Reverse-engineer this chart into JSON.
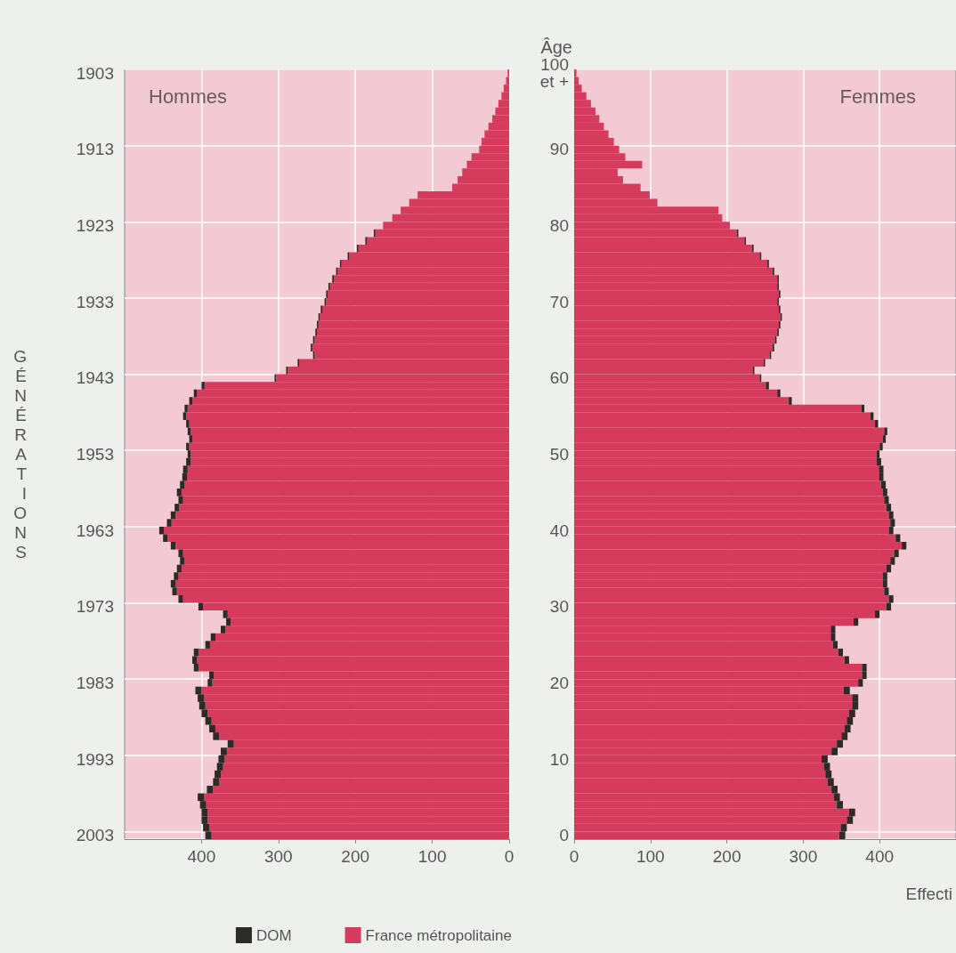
{
  "chart_data": [
    {
      "type": "bar",
      "orientation": "horizontal",
      "stacked": true,
      "title": "Hommes",
      "ylabel": "GÉNÉRATIONS",
      "categories": [
        "1903",
        null,
        null,
        null,
        null,
        null,
        null,
        null,
        null,
        null,
        "1913",
        null,
        null,
        null,
        null,
        null,
        null,
        null,
        null,
        null,
        "1923",
        null,
        null,
        null,
        null,
        null,
        null,
        null,
        null,
        null,
        "1933",
        null,
        null,
        null,
        null,
        null,
        null,
        null,
        null,
        null,
        "1943",
        null,
        null,
        null,
        null,
        null,
        null,
        null,
        null,
        null,
        "1953",
        null,
        null,
        null,
        null,
        null,
        null,
        null,
        null,
        null,
        "1963",
        null,
        null,
        null,
        null,
        null,
        null,
        null,
        null,
        null,
        "1973",
        null,
        null,
        null,
        null,
        null,
        null,
        null,
        null,
        null,
        "1983",
        null,
        null,
        null,
        null,
        null,
        null,
        null,
        null,
        null,
        "1993",
        null,
        null,
        null,
        null,
        null,
        null,
        null,
        null,
        null,
        "2003"
      ],
      "series": [
        {
          "name": "France métropolitaine",
          "color": "#d63a5c",
          "values": [
            2,
            4,
            7,
            10,
            14,
            18,
            22,
            27,
            32,
            36,
            39,
            49,
            55,
            61,
            67,
            74,
            119,
            130,
            141,
            152,
            164,
            174,
            185,
            196,
            208,
            218,
            223,
            228,
            233,
            236,
            238,
            243,
            246,
            248,
            250,
            253,
            256,
            253,
            273,
            288,
            303,
            396,
            406,
            412,
            418,
            420,
            416,
            414,
            412,
            416,
            414,
            414,
            418,
            419,
            422,
            426,
            424,
            429,
            434,
            439,
            449,
            444,
            434,
            424,
            422,
            426,
            430,
            434,
            432,
            424,
            398,
            366,
            362,
            369,
            382,
            389,
            404,
            406,
            404,
            384,
            386,
            400,
            397,
            395,
            392,
            387,
            382,
            377,
            358,
            367,
            370,
            372,
            375,
            377,
            385,
            397,
            394,
            392,
            392,
            390,
            387
          ]
        },
        {
          "name": "DOM",
          "color": "#2e2a28",
          "values": [
            null,
            null,
            null,
            null,
            null,
            null,
            null,
            null,
            null,
            null,
            null,
            null,
            null,
            null,
            null,
            null,
            null,
            null,
            null,
            null,
            null,
            2,
            2,
            2,
            2,
            2,
            2,
            2,
            2,
            2,
            2,
            2,
            2,
            2,
            2,
            2,
            2,
            2,
            2,
            2,
            2,
            4,
            4,
            4,
            4,
            4,
            4,
            4,
            4,
            4,
            4,
            6,
            6,
            6,
            6,
            6,
            6,
            6,
            6,
            6,
            6,
            6,
            6,
            6,
            6,
            6,
            6,
            6,
            6,
            6,
            6,
            6,
            6,
            6,
            6,
            6,
            6,
            6,
            6,
            6,
            6,
            8,
            8,
            8,
            8,
            8,
            8,
            8,
            8,
            8,
            8,
            8,
            8,
            8,
            8,
            8,
            8,
            8,
            8,
            8,
            8
          ]
        }
      ],
      "xlim": [
        500,
        0
      ],
      "xticks": [
        400,
        300,
        200,
        100,
        0
      ],
      "grid": true,
      "legend": "bottom"
    },
    {
      "type": "bar",
      "orientation": "horizontal",
      "stacked": true,
      "title": "Femmes",
      "ylabel": "Âge",
      "xlabel": "Effecti",
      "categories": [
        "100\net +",
        null,
        null,
        null,
        null,
        null,
        null,
        null,
        null,
        null,
        "90",
        null,
        null,
        null,
        null,
        null,
        null,
        null,
        null,
        null,
        "80",
        null,
        null,
        null,
        null,
        null,
        null,
        null,
        null,
        null,
        "70",
        null,
        null,
        null,
        null,
        null,
        null,
        null,
        null,
        null,
        "60",
        null,
        null,
        null,
        null,
        null,
        null,
        null,
        null,
        null,
        "50",
        null,
        null,
        null,
        null,
        null,
        null,
        null,
        null,
        null,
        "40",
        null,
        null,
        null,
        null,
        null,
        null,
        null,
        null,
        null,
        "30",
        null,
        null,
        null,
        null,
        null,
        null,
        null,
        null,
        null,
        "20",
        null,
        null,
        null,
        null,
        null,
        null,
        null,
        null,
        null,
        "10",
        null,
        null,
        null,
        null,
        null,
        null,
        null,
        null,
        null,
        "0"
      ],
      "series": [
        {
          "color": "#d63a5c",
          "values": [
            3,
            6,
            10,
            16,
            22,
            28,
            33,
            39,
            45,
            52,
            59,
            67,
            89,
            57,
            64,
            87,
            99,
            109,
            189,
            194,
            204,
            213,
            223,
            233,
            243,
            253,
            260,
            266,
            266,
            268,
            266,
            268,
            270,
            268,
            266,
            263,
            260,
            256,
            248,
            234,
            243,
            251,
            266,
            281,
            376,
            388,
            394,
            406,
            404,
            400,
            396,
            396,
            399,
            399,
            402,
            404,
            406,
            409,
            412,
            414,
            412,
            421,
            429,
            419,
            414,
            409,
            404,
            404,
            406,
            412,
            409,
            394,
            366,
            336,
            336,
            339,
            346,
            354,
            377,
            377,
            372,
            353,
            364,
            364,
            360,
            357,
            354,
            350,
            344,
            337,
            324,
            327,
            329,
            332,
            337,
            340,
            344,
            360,
            357,
            349,
            347
          ]
        },
        {
          "color": "#2e2a28",
          "values": [
            null,
            null,
            null,
            null,
            null,
            null,
            null,
            null,
            null,
            null,
            null,
            null,
            null,
            null,
            null,
            null,
            null,
            null,
            null,
            null,
            null,
            2,
            2,
            2,
            2,
            2,
            2,
            2,
            2,
            2,
            2,
            2,
            2,
            2,
            2,
            2,
            2,
            2,
            2,
            2,
            2,
            4,
            4,
            4,
            4,
            4,
            4,
            4,
            4,
            4,
            4,
            6,
            6,
            6,
            6,
            6,
            6,
            6,
            6,
            6,
            6,
            6,
            6,
            6,
            6,
            6,
            6,
            6,
            6,
            6,
            6,
            6,
            6,
            6,
            6,
            6,
            6,
            6,
            6,
            6,
            6,
            8,
            8,
            8,
            8,
            8,
            8,
            8,
            8,
            8,
            8,
            8,
            8,
            8,
            8,
            8,
            8,
            8,
            8,
            8,
            8
          ]
        }
      ],
      "xlim": [
        0,
        500
      ],
      "xticks": [
        0,
        100,
        200,
        300,
        400
      ],
      "grid": true
    }
  ]
}
